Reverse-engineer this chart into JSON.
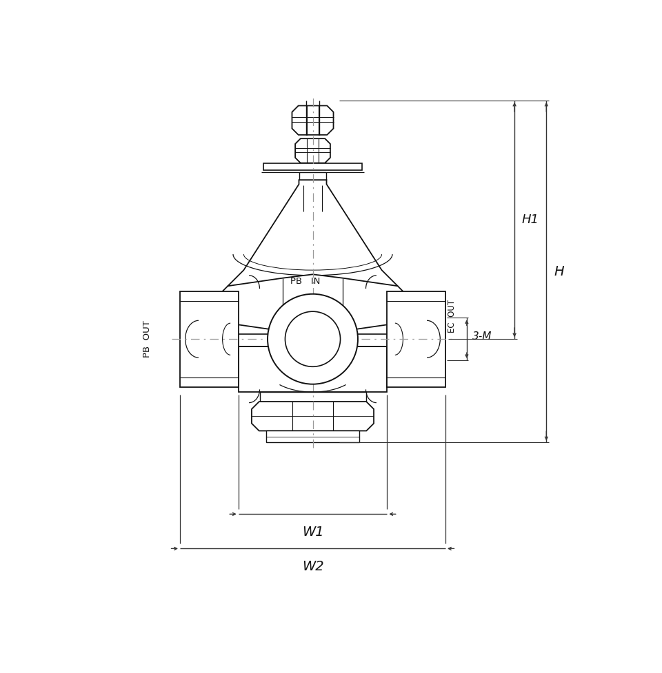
{
  "bg_color": "#ffffff",
  "line_color": "#111111",
  "dim_color": "#333333",
  "center_line_color": "#999999",
  "fig_width": 9.6,
  "fig_height": 9.77,
  "labels": {
    "H": "H",
    "H1": "H1",
    "W1": "W1",
    "W2": "W2",
    "3M": "3-M",
    "PB_IN": "PB   IN",
    "PB_OUT": "PB  OUT",
    "EC_OUT": "EC  OUT"
  }
}
